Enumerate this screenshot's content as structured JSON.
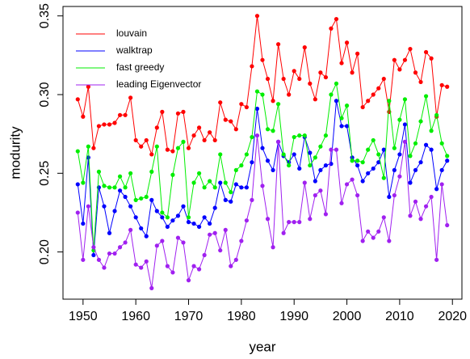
{
  "chart_data": {
    "type": "line",
    "x_label": "year",
    "y_label": "modurity",
    "x": [
      1949,
      1950,
      1951,
      1952,
      1953,
      1954,
      1955,
      1956,
      1957,
      1958,
      1959,
      1960,
      1961,
      1962,
      1963,
      1964,
      1965,
      1966,
      1967,
      1968,
      1969,
      1970,
      1971,
      1972,
      1973,
      1974,
      1975,
      1976,
      1977,
      1978,
      1979,
      1980,
      1981,
      1982,
      1983,
      1984,
      1985,
      1986,
      1987,
      1988,
      1989,
      1990,
      1991,
      1992,
      1993,
      1994,
      1995,
      1996,
      1997,
      1998,
      1999,
      2000,
      2001,
      2002,
      2003,
      2004,
      2005,
      2006,
      2007,
      2008,
      2009,
      2010,
      2011,
      2012,
      2013,
      2014,
      2015,
      2016,
      2017,
      2018,
      2019
    ],
    "xlim": [
      1946.2,
      2021.8
    ],
    "xticks": [
      1950,
      1960,
      1970,
      1980,
      1990,
      2000,
      2010,
      2020
    ],
    "ylim": [
      0.17,
      0.356
    ],
    "yticks": [
      {
        "value": 0.2,
        "label": "0.20"
      },
      0.25,
      {
        "value": 0.3,
        "label": "0.30"
      },
      0.35
    ],
    "legend": "top-left",
    "series": [
      {
        "name": "louvain",
        "color": "#ff0000",
        "values": [
          0.297,
          0.286,
          0.305,
          0.266,
          0.28,
          0.281,
          0.281,
          0.282,
          0.287,
          0.287,
          0.298,
          0.271,
          0.267,
          0.271,
          0.262,
          0.279,
          0.289,
          0.265,
          0.264,
          0.288,
          0.289,
          0.266,
          0.274,
          0.279,
          0.271,
          0.276,
          0.271,
          0.295,
          0.284,
          0.283,
          0.278,
          0.294,
          0.292,
          0.318,
          0.35,
          0.322,
          0.31,
          0.296,
          0.332,
          0.31,
          0.3,
          0.315,
          0.31,
          0.33,
          0.307,
          0.297,
          0.314,
          0.311,
          0.342,
          0.348,
          0.32,
          0.333,
          0.314,
          0.326,
          0.292,
          0.296,
          0.3,
          0.304,
          0.31,
          0.289,
          0.322,
          0.316,
          0.322,
          0.329,
          0.314,
          0.308,
          0.327,
          0.323,
          0.286,
          0.306,
          0.305
        ]
      },
      {
        "name": "walktrap",
        "color": "#0000ff",
        "values": [
          0.243,
          0.218,
          0.26,
          0.198,
          0.241,
          0.229,
          0.212,
          0.226,
          0.239,
          0.235,
          0.229,
          0.222,
          0.215,
          0.21,
          0.233,
          0.226,
          0.222,
          0.216,
          0.22,
          0.223,
          0.229,
          0.219,
          0.218,
          0.216,
          0.222,
          0.218,
          0.228,
          0.244,
          0.233,
          0.232,
          0.243,
          0.241,
          0.241,
          0.257,
          0.291,
          0.266,
          0.258,
          0.252,
          0.27,
          0.261,
          0.257,
          0.262,
          0.253,
          0.273,
          0.263,
          0.245,
          0.252,
          0.255,
          0.256,
          0.296,
          0.28,
          0.28,
          0.26,
          0.255,
          0.245,
          0.25,
          0.253,
          0.257,
          0.265,
          0.235,
          0.252,
          0.262,
          0.281,
          0.244,
          0.252,
          0.257,
          0.268,
          0.265,
          0.24,
          0.252,
          0.258
        ]
      },
      {
        "name": "fast greedy",
        "color": "#00ee00",
        "values": [
          0.264,
          0.244,
          0.267,
          0.201,
          0.251,
          0.242,
          0.241,
          0.241,
          0.248,
          0.241,
          0.25,
          0.233,
          0.234,
          0.235,
          0.251,
          0.267,
          0.225,
          0.222,
          0.249,
          0.266,
          0.27,
          0.222,
          0.244,
          0.25,
          0.241,
          0.245,
          0.241,
          0.262,
          0.244,
          0.238,
          0.252,
          0.255,
          0.262,
          0.273,
          0.302,
          0.3,
          0.278,
          0.277,
          0.294,
          0.262,
          0.255,
          0.273,
          0.274,
          0.274,
          0.255,
          0.26,
          0.267,
          0.274,
          0.3,
          0.307,
          0.285,
          0.293,
          0.258,
          0.258,
          0.257,
          0.265,
          0.271,
          0.262,
          0.247,
          0.296,
          0.266,
          0.284,
          0.297,
          0.261,
          0.269,
          0.283,
          0.299,
          0.277,
          0.287,
          0.269,
          0.261
        ]
      },
      {
        "name": "leading Eigenvector",
        "color": "#a020f0",
        "values": [
          0.225,
          0.195,
          0.229,
          0.203,
          0.195,
          0.19,
          0.199,
          0.199,
          0.203,
          0.206,
          0.214,
          0.192,
          0.19,
          0.194,
          0.177,
          0.204,
          0.207,
          0.191,
          0.187,
          0.209,
          0.206,
          0.182,
          0.191,
          0.189,
          0.198,
          0.211,
          0.212,
          0.201,
          0.214,
          0.191,
          0.195,
          0.207,
          0.22,
          0.233,
          0.274,
          0.242,
          0.221,
          0.203,
          0.27,
          0.212,
          0.219,
          0.219,
          0.219,
          0.244,
          0.221,
          0.236,
          0.239,
          0.224,
          0.265,
          0.265,
          0.231,
          0.243,
          0.246,
          0.236,
          0.207,
          0.213,
          0.209,
          0.213,
          0.222,
          0.207,
          0.236,
          0.248,
          0.27,
          0.223,
          0.232,
          0.221,
          0.229,
          0.235,
          0.195,
          0.243,
          0.217
        ]
      }
    ]
  }
}
